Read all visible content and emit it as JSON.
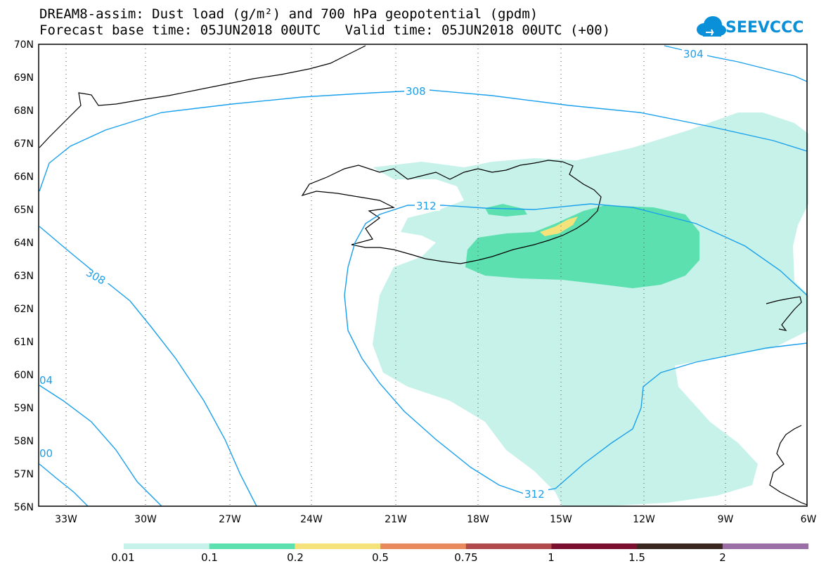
{
  "title": {
    "line1": "DREAM8-assim: Dust load (g/m²) and 700 hPa geopotential (gpdm)",
    "line2": "Forecast base time: 05JUN2018 00UTC   Valid time: 05JUN2018 00UTC (+00)"
  },
  "logo": {
    "text": "SEEVCCC",
    "icon": "cloud-icon"
  },
  "axes": {
    "lat_labels": [
      "70N",
      "69N",
      "68N",
      "67N",
      "66N",
      "65N",
      "64N",
      "63N",
      "62N",
      "61N",
      "60N",
      "59N",
      "58N",
      "57N",
      "56N"
    ],
    "lon_labels": [
      "33W",
      "30W",
      "27W",
      "24W",
      "21W",
      "18W",
      "15W",
      "12W",
      "9W",
      "6W"
    ]
  },
  "contour_labels": [
    "304",
    "308",
    "308",
    "312",
    "312",
    "04",
    "00"
  ],
  "colorbar": {
    "labels": [
      "0.01",
      "0.1",
      "0.2",
      "0.5",
      "0.75",
      "1",
      "1.5",
      "2"
    ],
    "colors": [
      "#c6f2ea",
      "#5de0b0",
      "#f5e27a",
      "#e88a5d",
      "#b04a4a",
      "#7a0f30",
      "#3a2820",
      "#9b6fa6"
    ]
  },
  "colors": {
    "contour": "#1aa0ec",
    "coast": "#000000"
  }
}
